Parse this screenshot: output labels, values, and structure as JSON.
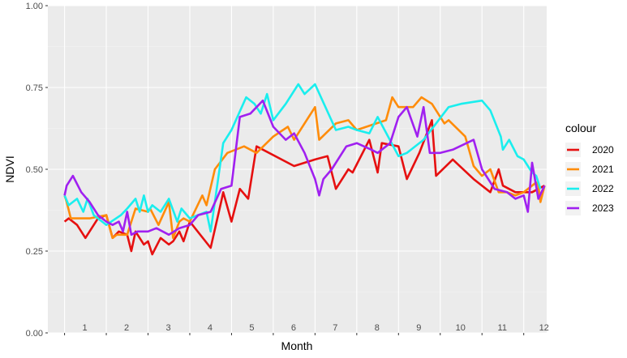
{
  "chart_data": {
    "type": "line",
    "xlabel": "Month",
    "ylabel": "NDVI",
    "xlim": [
      1,
      12.5
    ],
    "ylim": [
      0,
      1
    ],
    "y_ticks": [
      0.0,
      0.25,
      0.5,
      0.75,
      1.0
    ],
    "y_tick_labels": [
      "0.00",
      "0.25",
      "0.50",
      "0.75",
      "1.00"
    ],
    "x_ticks": [
      1,
      2,
      3,
      4,
      5,
      6,
      7,
      8,
      9,
      10,
      11,
      12
    ],
    "x_tick_labels": [
      "1",
      "2",
      "3",
      "4",
      "5",
      "6",
      "7",
      "8",
      "9",
      "10",
      "11",
      "12"
    ],
    "grid": true,
    "legend": {
      "title": "colour",
      "position": "right"
    },
    "series": [
      {
        "name": "2020",
        "color": "#e61010",
        "x": [
          1.0,
          1.1,
          1.3,
          1.5,
          1.8,
          2.0,
          2.15,
          2.3,
          2.5,
          2.6,
          2.7,
          2.9,
          3.0,
          3.1,
          3.3,
          3.5,
          3.6,
          3.75,
          3.85,
          4.0,
          4.5,
          4.75,
          4.8,
          5.0,
          5.2,
          5.4,
          5.6,
          6.5,
          7.0,
          7.3,
          7.5,
          7.8,
          7.9,
          8.3,
          8.5,
          8.6,
          9.0,
          9.2,
          9.5,
          9.8,
          9.9,
          10.3,
          10.8,
          11.2,
          11.4,
          11.5,
          11.8,
          12.2,
          12.35,
          12.5
        ],
        "y": [
          0.34,
          0.35,
          0.33,
          0.29,
          0.35,
          0.36,
          0.29,
          0.31,
          0.3,
          0.25,
          0.31,
          0.27,
          0.28,
          0.24,
          0.29,
          0.27,
          0.28,
          0.31,
          0.28,
          0.34,
          0.26,
          0.4,
          0.43,
          0.34,
          0.44,
          0.41,
          0.57,
          0.51,
          0.53,
          0.54,
          0.44,
          0.5,
          0.49,
          0.59,
          0.49,
          0.58,
          0.57,
          0.47,
          0.55,
          0.65,
          0.48,
          0.53,
          0.47,
          0.43,
          0.5,
          0.45,
          0.43,
          0.43,
          0.44,
          0.45
        ]
      },
      {
        "name": "2021",
        "color": "#ff8c0a",
        "x": [
          1.0,
          1.05,
          1.15,
          1.6,
          2.0,
          2.15,
          2.25,
          2.5,
          2.7,
          3.0,
          3.05,
          3.25,
          3.5,
          3.6,
          3.75,
          3.85,
          4.0,
          4.3,
          4.4,
          4.6,
          4.9,
          5.3,
          5.6,
          6.0,
          6.35,
          6.5,
          7.0,
          7.1,
          7.5,
          7.8,
          8.0,
          8.7,
          8.85,
          9.0,
          9.35,
          9.55,
          9.8,
          10.1,
          10.2,
          10.6,
          10.8,
          11.0,
          11.2,
          11.4,
          11.6,
          11.8,
          12.0,
          12.3,
          12.35,
          12.4,
          12.5
        ],
        "y": [
          0.42,
          0.4,
          0.35,
          0.35,
          0.36,
          0.29,
          0.3,
          0.3,
          0.38,
          0.37,
          0.38,
          0.33,
          0.4,
          0.29,
          0.34,
          0.35,
          0.34,
          0.42,
          0.39,
          0.5,
          0.55,
          0.57,
          0.55,
          0.6,
          0.63,
          0.59,
          0.69,
          0.59,
          0.64,
          0.65,
          0.62,
          0.65,
          0.72,
          0.69,
          0.69,
          0.72,
          0.7,
          0.64,
          0.65,
          0.6,
          0.51,
          0.48,
          0.5,
          0.43,
          0.43,
          0.42,
          0.43,
          0.46,
          0.45,
          0.4,
          0.45
        ]
      },
      {
        "name": "2022",
        "color": "#1aeeee",
        "x": [
          1.0,
          1.1,
          1.3,
          1.45,
          1.55,
          1.7,
          2.0,
          2.35,
          2.5,
          2.7,
          2.8,
          2.9,
          3.0,
          3.1,
          3.3,
          3.5,
          3.7,
          3.8,
          4.0,
          4.4,
          4.5,
          4.8,
          5.0,
          5.35,
          5.55,
          5.7,
          5.85,
          6.0,
          6.3,
          6.55,
          6.6,
          6.75,
          7.0,
          7.5,
          7.8,
          8.0,
          8.3,
          8.5,
          9.0,
          9.2,
          9.6,
          10.2,
          10.5,
          11.0,
          11.2,
          11.45,
          11.5,
          11.65,
          11.85,
          12.0,
          12.15,
          12.2,
          12.3,
          12.4
        ],
        "y": [
          0.42,
          0.39,
          0.41,
          0.37,
          0.41,
          0.36,
          0.33,
          0.36,
          0.38,
          0.41,
          0.37,
          0.42,
          0.37,
          0.39,
          0.37,
          0.41,
          0.34,
          0.38,
          0.35,
          0.37,
          0.31,
          0.58,
          0.62,
          0.72,
          0.7,
          0.67,
          0.73,
          0.65,
          0.7,
          0.75,
          0.76,
          0.73,
          0.76,
          0.62,
          0.63,
          0.62,
          0.61,
          0.66,
          0.54,
          0.55,
          0.59,
          0.69,
          0.7,
          0.71,
          0.68,
          0.6,
          0.56,
          0.59,
          0.54,
          0.53,
          0.5,
          0.49,
          0.48,
          0.44
        ]
      },
      {
        "name": "2023",
        "color": "#a020f0",
        "x": [
          1.0,
          1.05,
          1.2,
          1.4,
          1.6,
          1.8,
          2.0,
          2.15,
          2.3,
          2.4,
          2.5,
          2.6,
          2.75,
          3.0,
          3.2,
          3.5,
          3.75,
          4.0,
          4.2,
          4.5,
          4.75,
          5.0,
          5.2,
          5.45,
          5.75,
          6.0,
          6.3,
          6.5,
          6.75,
          7.0,
          7.1,
          7.2,
          7.4,
          7.75,
          8.0,
          8.35,
          8.5,
          8.8,
          9.0,
          9.2,
          9.45,
          9.6,
          9.75,
          10.0,
          10.3,
          10.8,
          11.0,
          11.3,
          11.6,
          11.8,
          12.0,
          12.1,
          12.2,
          12.35,
          12.5
        ],
        "y": [
          0.42,
          0.45,
          0.48,
          0.43,
          0.4,
          0.36,
          0.34,
          0.33,
          0.34,
          0.31,
          0.37,
          0.3,
          0.31,
          0.31,
          0.32,
          0.3,
          0.32,
          0.33,
          0.36,
          0.37,
          0.44,
          0.45,
          0.66,
          0.67,
          0.71,
          0.63,
          0.59,
          0.61,
          0.55,
          0.47,
          0.42,
          0.47,
          0.5,
          0.57,
          0.58,
          0.56,
          0.55,
          0.58,
          0.66,
          0.69,
          0.6,
          0.69,
          0.55,
          0.55,
          0.56,
          0.59,
          0.5,
          0.44,
          0.43,
          0.41,
          0.42,
          0.37,
          0.52,
          0.41,
          0.45
        ]
      }
    ]
  }
}
